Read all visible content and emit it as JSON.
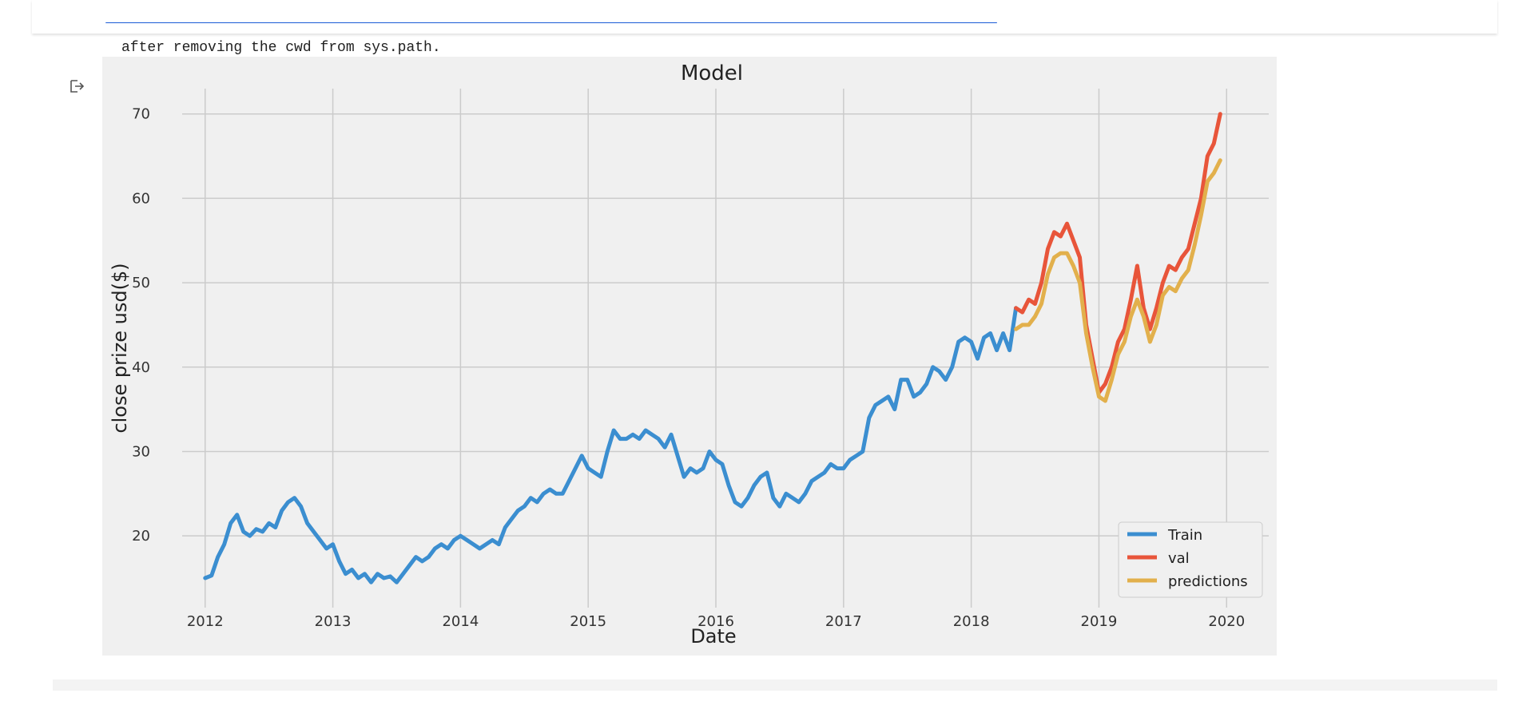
{
  "cell": {
    "warning_text": "after removing the cwd from sys.path."
  },
  "chart_data": {
    "type": "line",
    "title": "Model",
    "xlabel": "Date",
    "ylabel": "close prize usd($)",
    "xlim": [
      2011.82,
      2020.33
    ],
    "ylim": [
      11.5,
      73.0
    ],
    "xticks": [
      "2012",
      "2013",
      "2014",
      "2015",
      "2016",
      "2017",
      "2018",
      "2019",
      "2020"
    ],
    "yticks": [
      "20",
      "30",
      "40",
      "50",
      "60",
      "70"
    ],
    "grid": true,
    "legend_position": "bottom-right",
    "background": "#f0f0f0",
    "series": [
      {
        "name": "Train",
        "color": "#3b8ed0",
        "x": [
          2012.0,
          2012.05,
          2012.1,
          2012.15,
          2012.2,
          2012.25,
          2012.3,
          2012.35,
          2012.4,
          2012.45,
          2012.5,
          2012.55,
          2012.6,
          2012.65,
          2012.7,
          2012.75,
          2012.8,
          2012.85,
          2012.9,
          2012.95,
          2013.0,
          2013.05,
          2013.1,
          2013.15,
          2013.2,
          2013.25,
          2013.3,
          2013.35,
          2013.4,
          2013.45,
          2013.5,
          2013.55,
          2013.6,
          2013.65,
          2013.7,
          2013.75,
          2013.8,
          2013.85,
          2013.9,
          2013.95,
          2014.0,
          2014.05,
          2014.1,
          2014.15,
          2014.2,
          2014.25,
          2014.3,
          2014.35,
          2014.4,
          2014.45,
          2014.5,
          2014.55,
          2014.6,
          2014.65,
          2014.7,
          2014.75,
          2014.8,
          2014.85,
          2014.9,
          2014.95,
          2015.0,
          2015.05,
          2015.1,
          2015.15,
          2015.2,
          2015.25,
          2015.3,
          2015.35,
          2015.4,
          2015.45,
          2015.5,
          2015.55,
          2015.6,
          2015.65,
          2015.7,
          2015.75,
          2015.8,
          2015.85,
          2015.9,
          2015.95,
          2016.0,
          2016.05,
          2016.1,
          2016.15,
          2016.2,
          2016.25,
          2016.3,
          2016.35,
          2016.4,
          2016.45,
          2016.5,
          2016.55,
          2016.6,
          2016.65,
          2016.7,
          2016.75,
          2016.8,
          2016.85,
          2016.9,
          2016.95,
          2017.0,
          2017.05,
          2017.1,
          2017.15,
          2017.2,
          2017.25,
          2017.3,
          2017.35,
          2017.4,
          2017.45,
          2017.5,
          2017.55,
          2017.6,
          2017.65,
          2017.7,
          2017.75,
          2017.8,
          2017.85,
          2017.9,
          2017.95,
          2018.0,
          2018.05,
          2018.1,
          2018.15,
          2018.2,
          2018.25,
          2018.3,
          2018.35
        ],
        "y": [
          15.0,
          15.3,
          17.5,
          19.0,
          21.5,
          22.5,
          20.5,
          20.0,
          20.8,
          20.5,
          21.5,
          21.0,
          23.0,
          24.0,
          24.5,
          23.5,
          21.5,
          20.5,
          19.5,
          18.5,
          19.0,
          17.0,
          15.5,
          16.0,
          15.0,
          15.5,
          14.5,
          15.5,
          15.0,
          15.2,
          14.5,
          15.5,
          16.5,
          17.5,
          17.0,
          17.5,
          18.5,
          19.0,
          18.5,
          19.5,
          20.0,
          19.5,
          19.0,
          18.5,
          19.0,
          19.5,
          19.0,
          21.0,
          22.0,
          23.0,
          23.5,
          24.5,
          24.0,
          25.0,
          25.5,
          25.0,
          25.0,
          26.5,
          28.0,
          29.5,
          28.0,
          27.5,
          27.0,
          30.0,
          32.5,
          31.5,
          31.5,
          32.0,
          31.5,
          32.5,
          32.0,
          31.5,
          30.5,
          32.0,
          29.5,
          27.0,
          28.0,
          27.5,
          28.0,
          30.0,
          29.0,
          28.5,
          26.0,
          24.0,
          23.5,
          24.5,
          26.0,
          27.0,
          27.5,
          24.5,
          23.5,
          25.0,
          24.5,
          24.0,
          25.0,
          26.5,
          27.0,
          27.5,
          28.5,
          28.0,
          28.0,
          29.0,
          29.5,
          30.0,
          34.0,
          35.5,
          36.0,
          36.5,
          35.0,
          38.5,
          38.5,
          36.5,
          37.0,
          38.0,
          40.0,
          39.5,
          38.5,
          40.0,
          43.0,
          43.5,
          43.0,
          41.0,
          43.5,
          44.0,
          42.0,
          44.0,
          42.0,
          47.0
        ]
      },
      {
        "name": "val",
        "color": "#e8553a",
        "x": [
          2018.35,
          2018.4,
          2018.45,
          2018.5,
          2018.55,
          2018.6,
          2018.65,
          2018.7,
          2018.75,
          2018.8,
          2018.85,
          2018.9,
          2018.95,
          2019.0,
          2019.05,
          2019.1,
          2019.15,
          2019.2,
          2019.25,
          2019.3,
          2019.35,
          2019.4,
          2019.45,
          2019.5,
          2019.55,
          2019.6,
          2019.65,
          2019.7,
          2019.75,
          2019.8,
          2019.85,
          2019.9,
          2019.95
        ],
        "y": [
          47.0,
          46.5,
          48.0,
          47.5,
          50.0,
          54.0,
          56.0,
          55.5,
          57.0,
          55.0,
          53.0,
          45.0,
          41.0,
          37.0,
          38.0,
          40.0,
          43.0,
          44.5,
          48.0,
          52.0,
          47.0,
          44.5,
          47.0,
          50.0,
          52.0,
          51.5,
          53.0,
          54.0,
          57.0,
          60.0,
          65.0,
          66.5,
          70.0
        ]
      },
      {
        "name": "predictions",
        "color": "#e2b04c",
        "x": [
          2018.35,
          2018.4,
          2018.45,
          2018.5,
          2018.55,
          2018.6,
          2018.65,
          2018.7,
          2018.75,
          2018.8,
          2018.85,
          2018.9,
          2018.95,
          2019.0,
          2019.05,
          2019.1,
          2019.15,
          2019.2,
          2019.25,
          2019.3,
          2019.35,
          2019.4,
          2019.45,
          2019.5,
          2019.55,
          2019.6,
          2019.65,
          2019.7,
          2019.75,
          2019.8,
          2019.85,
          2019.9,
          2019.95
        ],
        "y": [
          44.5,
          45.0,
          45.0,
          46.0,
          47.5,
          51.0,
          53.0,
          53.5,
          53.5,
          52.0,
          50.0,
          44.0,
          40.0,
          36.5,
          36.0,
          38.5,
          41.5,
          43.0,
          46.0,
          48.0,
          46.0,
          43.0,
          45.0,
          48.5,
          49.5,
          49.0,
          50.5,
          51.5,
          54.5,
          58.0,
          62.0,
          63.0,
          64.5
        ]
      }
    ]
  }
}
